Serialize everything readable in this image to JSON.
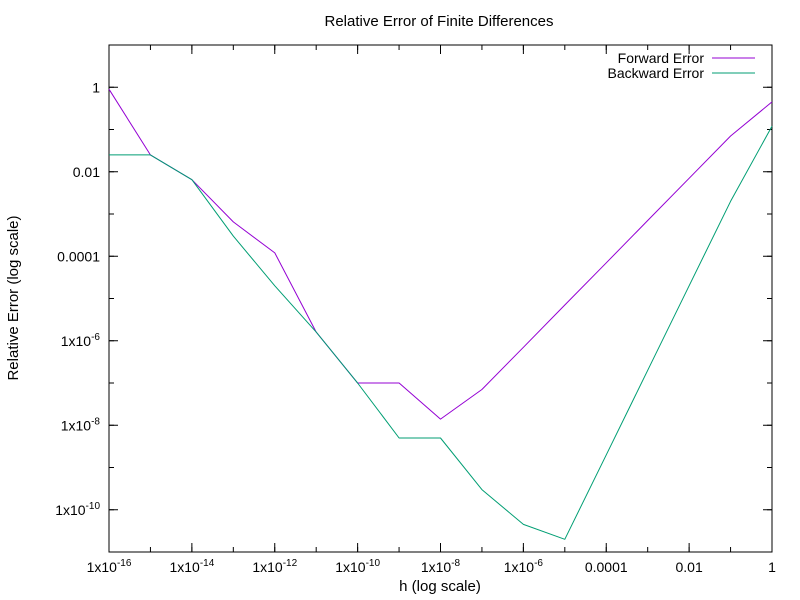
{
  "chart_data": {
    "type": "line",
    "title": "Relative Error of Finite Differences",
    "xlabel": "h (log scale)",
    "ylabel": "Relative Error (log scale)",
    "xscale": "log",
    "yscale": "log",
    "xlim": [
      1e-16,
      1
    ],
    "ylim": [
      1e-11,
      10
    ],
    "grid": false,
    "legend_position": "top-right",
    "x_ticks": [
      {
        "value": 1e-16,
        "label": "1x10-16",
        "mantissa": "1x10",
        "exp": "-16"
      },
      {
        "value": 1e-14,
        "label": "1x10-14",
        "mantissa": "1x10",
        "exp": "-14"
      },
      {
        "value": 1e-12,
        "label": "1x10-12",
        "mantissa": "1x10",
        "exp": "-12"
      },
      {
        "value": 1e-10,
        "label": "1x10-10",
        "mantissa": "1x10",
        "exp": "-10"
      },
      {
        "value": 1e-08,
        "label": "1x10-8",
        "mantissa": "1x10",
        "exp": "-8"
      },
      {
        "value": 1e-06,
        "label": "1x10-6",
        "mantissa": "1x10",
        "exp": "-6"
      },
      {
        "value": 0.0001,
        "label": "0.0001",
        "mantissa": "0.0001",
        "exp": ""
      },
      {
        "value": 0.01,
        "label": "0.01",
        "mantissa": "0.01",
        "exp": ""
      },
      {
        "value": 1,
        "label": "1",
        "mantissa": "1",
        "exp": ""
      }
    ],
    "y_ticks": [
      {
        "value": 1,
        "label": "1",
        "mantissa": "1",
        "exp": ""
      },
      {
        "value": 0.01,
        "label": "0.01",
        "mantissa": "0.01",
        "exp": ""
      },
      {
        "value": 0.0001,
        "label": "0.0001",
        "mantissa": "0.0001",
        "exp": ""
      },
      {
        "value": 1e-06,
        "label": "1x10-6",
        "mantissa": "1x10",
        "exp": "-6"
      },
      {
        "value": 1e-08,
        "label": "1x10-8",
        "mantissa": "1x10",
        "exp": "-8"
      },
      {
        "value": 1e-10,
        "label": "1x10-10",
        "mantissa": "1x10",
        "exp": "-10"
      }
    ],
    "x": [
      1e-16,
      1e-15,
      1e-14,
      1e-13,
      1e-12,
      1e-11,
      1e-10,
      1e-09,
      1e-08,
      1e-07,
      1e-06,
      1e-05,
      0.0001,
      0.001,
      0.01,
      0.1,
      1
    ],
    "series": [
      {
        "name": "Forward Error",
        "color": "#9400d3",
        "values": [
          0.9,
          0.025,
          0.0065,
          0.00065,
          0.00012,
          1.6e-06,
          1e-07,
          1e-07,
          1.4e-08,
          7e-08,
          7e-07,
          7e-06,
          7e-05,
          0.0007,
          0.007,
          0.07,
          0.45
        ]
      },
      {
        "name": "Backward Error",
        "color": "#009e73",
        "values": [
          0.025,
          0.025,
          0.0065,
          0.0003,
          2e-05,
          1.6e-06,
          1e-07,
          5e-09,
          5e-09,
          3e-10,
          4.5e-11,
          2e-11,
          2e-09,
          2e-07,
          2e-05,
          0.002,
          0.12
        ]
      }
    ]
  }
}
